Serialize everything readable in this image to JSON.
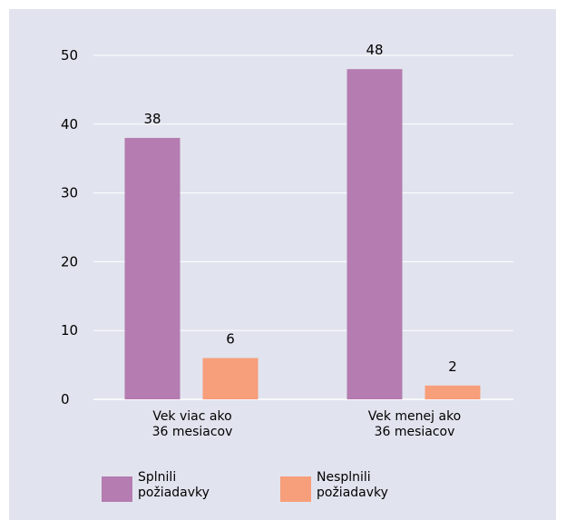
{
  "chart_data": {
    "type": "bar",
    "categories": [
      [
        "Vek viac ako",
        "36 mesiacov"
      ],
      [
        "Vek menej ako",
        "36 mesiacov"
      ]
    ],
    "series": [
      {
        "name": [
          "Splnili",
          "požiadavky"
        ],
        "values": [
          38,
          48
        ],
        "color": "#b47cb0"
      },
      {
        "name": [
          "Nesplnili",
          "požiadavky"
        ],
        "values": [
          6,
          2
        ],
        "color": "#f79e7b"
      }
    ],
    "yticks": [
      0,
      10,
      20,
      30,
      40,
      50
    ],
    "ylim": [
      0,
      50
    ],
    "grid": true,
    "legend_position": "bottom-left"
  },
  "colors": {
    "panel_background": "#e1e4ee",
    "gridline": "#ffffff",
    "baseline": "#ffffff"
  }
}
